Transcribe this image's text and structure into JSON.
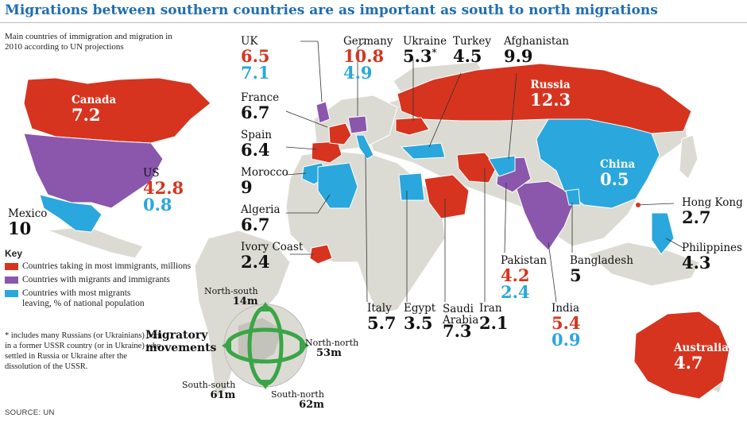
{
  "header": {
    "title": "Migrations between southern countries are as important as south to north migrations",
    "subtitle": "Main countries of immigration and migration in 2010 according to UN projections"
  },
  "colors": {
    "immigrants": "#d6341f",
    "both": "#8a57ad",
    "migrants": "#2aa7dc",
    "land": "#dcdbd3",
    "ocean": "#ffffff"
  },
  "countries": {
    "uk": {
      "name": "UK",
      "immigrants": "6.5",
      "migrants": "7.1"
    },
    "germany": {
      "name": "Germany",
      "immigrants": "10.8",
      "migrants": "4.9"
    },
    "ukraine": {
      "name": "Ukraine",
      "value": "5.3",
      "mark": "*"
    },
    "turkey": {
      "name": "Turkey",
      "value": "4.5"
    },
    "afghanistan": {
      "name": "Afghanistan",
      "value": "9.9"
    },
    "russia": {
      "name": "Russia",
      "value": "12.3"
    },
    "canada": {
      "name": "Canada",
      "value": "7.2"
    },
    "france": {
      "name": "France",
      "value": "6.7"
    },
    "spain": {
      "name": "Spain",
      "value": "6.4"
    },
    "morocco": {
      "name": "Morocco",
      "value": "9"
    },
    "us": {
      "name": "US",
      "immigrants": "42.8",
      "migrants": "0.8"
    },
    "mexico": {
      "name": "Mexico",
      "value": "10"
    },
    "algeria": {
      "name": "Algeria",
      "value": "6.7"
    },
    "china": {
      "name": "China",
      "value": "0.5"
    },
    "hongkong": {
      "name": "Hong Kong",
      "value": "2.7"
    },
    "philippines": {
      "name": "Philippines",
      "value": "4.3"
    },
    "ivorycoast": {
      "name": "Ivory Coast",
      "value": "2.4"
    },
    "pakistan": {
      "name": "Pakistan",
      "immigrants": "4.2",
      "migrants": "2.4"
    },
    "bangladesh": {
      "name": "Bangladesh",
      "value": "5"
    },
    "italy": {
      "name": "Italy",
      "value": "5.7"
    },
    "egypt": {
      "name": "Egypt",
      "value": "3.5"
    },
    "saudi": {
      "name": "Saudi Arabia",
      "value": "7.3"
    },
    "iran": {
      "name": "Iran",
      "value": "2.1"
    },
    "india": {
      "name": "India",
      "immigrants": "5.4",
      "migrants": "0.9"
    },
    "australia": {
      "name": "Australia",
      "value": "4.7"
    }
  },
  "key": {
    "heading": "Key",
    "immigrants": "Countries taking in most immigrants, millions",
    "both": "Countries with migrants and immigrants",
    "migrants": "Countries with most migrants leaving, % of national population"
  },
  "footnote": "* includes many Russians (or Ukrainians) born in a former USSR country (or in Ukraine) who settled in Russia or Ukraine after the dissolution of the USSR.",
  "source": "SOURCE: UN",
  "movements": {
    "heading": "Migratory movements",
    "north_south": {
      "label": "North-south",
      "value": "14m"
    },
    "north_north": {
      "label": "North-north",
      "value": "53m"
    },
    "south_south": {
      "label": "South-south",
      "value": "61m"
    },
    "south_north": {
      "label": "South-north",
      "value": "62m"
    }
  }
}
